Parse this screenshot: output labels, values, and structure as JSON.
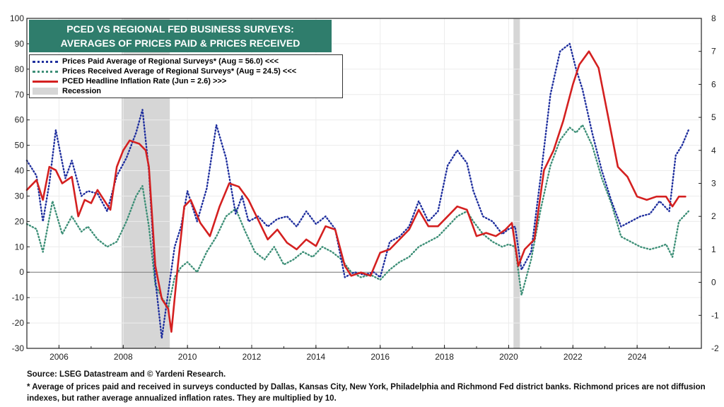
{
  "chart_data": {
    "type": "line",
    "title_lines": [
      "PCED VS REGIONAL FED BUSINESS SURVEYS:",
      "AVERAGES OF PRICES PAID & PRICES RECEIVED"
    ],
    "x_range": [
      2005.0,
      2026.0
    ],
    "x_ticks": [
      "2006",
      "2008",
      "2010",
      "2012",
      "2014",
      "2016",
      "2018",
      "2020",
      "2022",
      "2024"
    ],
    "left_axis": {
      "range": [
        -30,
        100
      ],
      "ticks": [
        "100",
        "90",
        "80",
        "70",
        "60",
        "50",
        "40",
        "30",
        "20",
        "10",
        "0",
        "-10",
        "-20",
        "-30"
      ]
    },
    "right_axis": {
      "range": [
        -2,
        8
      ],
      "ticks": [
        "8",
        "7",
        "6",
        "5",
        "4",
        "3",
        "2",
        "1",
        "0",
        "-1",
        "-2"
      ]
    },
    "recessions": [
      [
        2007.95,
        2009.45
      ],
      [
        2020.15,
        2020.35
      ]
    ],
    "legend_placement": "top-left",
    "legend": [
      {
        "label": "Prices Paid Average of Regional Surveys* (Aug = 56.0) <<<",
        "color": "#1f2f9e",
        "style": "dotted"
      },
      {
        "label": "Prices Received Average of Regional Surveys* (Aug = 24.5) <<<",
        "color": "#3d8f77",
        "style": "dotted"
      },
      {
        "label": "PCED Headline Inflation Rate (Jun = 2.6) >>>",
        "color": "#d42020",
        "style": "solid"
      },
      {
        "label": "Recession",
        "color": "#d6d6d6",
        "style": "box"
      }
    ],
    "series": [
      {
        "name": "Prices Paid Average of Regional Surveys* (Aug = 56.0) <<<",
        "axis": "left",
        "color": "#1f2f9e",
        "x": [
          2005.0,
          2005.3,
          2005.5,
          2005.7,
          2005.9,
          2006.2,
          2006.4,
          2006.7,
          2006.9,
          2007.2,
          2007.5,
          2007.8,
          2008.1,
          2008.4,
          2008.6,
          2008.8,
          2009.0,
          2009.2,
          2009.4,
          2009.6,
          2009.8,
          2010.0,
          2010.3,
          2010.6,
          2010.9,
          2011.2,
          2011.5,
          2011.7,
          2011.9,
          2012.2,
          2012.5,
          2012.8,
          2013.1,
          2013.4,
          2013.7,
          2014.0,
          2014.3,
          2014.6,
          2014.9,
          2015.2,
          2015.5,
          2015.8,
          2016.0,
          2016.3,
          2016.6,
          2016.9,
          2017.2,
          2017.5,
          2017.8,
          2018.1,
          2018.4,
          2018.7,
          2018.9,
          2019.2,
          2019.5,
          2019.8,
          2020.0,
          2020.2,
          2020.4,
          2020.7,
          2021.0,
          2021.3,
          2021.6,
          2021.9,
          2022.1,
          2022.3,
          2022.6,
          2022.9,
          2023.2,
          2023.5,
          2023.8,
          2024.1,
          2024.4,
          2024.7,
          2025.0,
          2025.2,
          2025.4,
          2025.6
        ],
        "values": [
          44,
          38,
          20,
          35,
          56,
          37,
          44,
          30,
          32,
          31,
          24,
          38,
          45,
          55,
          64,
          40,
          -3,
          -26,
          -8,
          10,
          18,
          32,
          20,
          33,
          58,
          45,
          23,
          30,
          20,
          22,
          18,
          21,
          22,
          18,
          24,
          19,
          22,
          17,
          -2,
          0,
          -1,
          0,
          -2,
          12,
          14,
          18,
          28,
          20,
          24,
          42,
          48,
          43,
          32,
          22,
          20,
          15,
          17,
          18,
          1,
          8,
          38,
          70,
          87,
          90,
          80,
          72,
          55,
          40,
          28,
          18,
          20,
          22,
          23,
          28,
          24,
          46,
          50,
          56
        ]
      },
      {
        "name": "Prices Received Average of Regional Surveys* (Aug = 24.5) <<<",
        "axis": "left",
        "color": "#3d8f77",
        "x": [
          2005.0,
          2005.3,
          2005.5,
          2005.8,
          2006.1,
          2006.4,
          2006.7,
          2006.9,
          2007.2,
          2007.5,
          2007.8,
          2008.1,
          2008.4,
          2008.6,
          2008.8,
          2009.0,
          2009.2,
          2009.4,
          2009.6,
          2009.8,
          2010.0,
          2010.3,
          2010.6,
          2010.9,
          2011.2,
          2011.5,
          2011.8,
          2012.1,
          2012.4,
          2012.7,
          2013.0,
          2013.3,
          2013.6,
          2013.9,
          2014.2,
          2014.5,
          2014.8,
          2015.1,
          2015.4,
          2015.7,
          2016.0,
          2016.3,
          2016.6,
          2016.9,
          2017.2,
          2017.5,
          2017.8,
          2018.1,
          2018.4,
          2018.7,
          2018.9,
          2019.2,
          2019.5,
          2019.8,
          2020.0,
          2020.2,
          2020.4,
          2020.7,
          2021.0,
          2021.3,
          2021.6,
          2021.9,
          2022.1,
          2022.3,
          2022.6,
          2022.9,
          2023.2,
          2023.5,
          2023.8,
          2024.1,
          2024.4,
          2024.7,
          2024.9,
          2025.1,
          2025.3,
          2025.6
        ],
        "values": [
          19,
          17,
          8,
          28,
          15,
          22,
          16,
          18,
          13,
          10,
          12,
          20,
          30,
          34,
          18,
          -5,
          -10,
          -14,
          -2,
          2,
          4,
          0,
          8,
          14,
          22,
          25,
          16,
          8,
          5,
          10,
          3,
          5,
          8,
          6,
          10,
          8,
          5,
          0,
          -2,
          -1,
          -3,
          1,
          4,
          6,
          10,
          12,
          14,
          18,
          22,
          24,
          20,
          15,
          12,
          10,
          11,
          10,
          -9,
          5,
          25,
          42,
          52,
          57,
          55,
          58,
          50,
          37,
          27,
          14,
          12,
          10,
          9,
          10,
          11,
          6,
          20,
          24
        ]
      },
      {
        "name": "PCED Headline Inflation Rate (Jun = 2.6) >>>",
        "axis": "right",
        "color": "#d42020",
        "x": [
          2005.0,
          2005.3,
          2005.5,
          2005.7,
          2005.9,
          2006.1,
          2006.4,
          2006.6,
          2006.8,
          2007.0,
          2007.2,
          2007.4,
          2007.6,
          2007.8,
          2008.0,
          2008.2,
          2008.5,
          2008.7,
          2008.8,
          2009.0,
          2009.2,
          2009.4,
          2009.5,
          2009.7,
          2009.9,
          2010.1,
          2010.4,
          2010.7,
          2011.0,
          2011.3,
          2011.6,
          2011.9,
          2012.2,
          2012.5,
          2012.8,
          2013.1,
          2013.4,
          2013.7,
          2014.0,
          2014.3,
          2014.6,
          2014.9,
          2015.1,
          2015.4,
          2015.7,
          2016.0,
          2016.3,
          2016.6,
          2016.9,
          2017.2,
          2017.5,
          2017.8,
          2018.1,
          2018.4,
          2018.7,
          2019.0,
          2019.3,
          2019.6,
          2019.9,
          2020.1,
          2020.3,
          2020.5,
          2020.8,
          2021.1,
          2021.4,
          2021.7,
          2022.0,
          2022.2,
          2022.5,
          2022.8,
          2023.1,
          2023.4,
          2023.7,
          2024.0,
          2024.3,
          2024.6,
          2024.9,
          2025.1,
          2025.3,
          2025.5
        ],
        "values": [
          2.8,
          3.1,
          2.5,
          3.5,
          3.4,
          3.0,
          3.2,
          2.0,
          2.5,
          2.4,
          2.8,
          2.5,
          2.2,
          3.5,
          4.0,
          4.3,
          4.2,
          4.0,
          3.5,
          0.5,
          -0.5,
          -0.8,
          -1.5,
          0.5,
          2.3,
          2.5,
          1.8,
          1.4,
          2.3,
          3.0,
          2.9,
          2.5,
          1.9,
          1.3,
          1.6,
          1.2,
          1.0,
          1.3,
          1.1,
          1.7,
          1.6,
          0.5,
          0.2,
          0.3,
          0.2,
          0.9,
          1.0,
          1.3,
          1.6,
          2.2,
          1.7,
          1.7,
          2.0,
          2.3,
          2.2,
          1.4,
          1.5,
          1.4,
          1.6,
          1.8,
          0.5,
          1.0,
          1.3,
          3.4,
          4.0,
          4.9,
          6.0,
          6.6,
          7.0,
          6.5,
          5.0,
          3.5,
          3.2,
          2.6,
          2.5,
          2.6,
          2.6,
          2.3,
          2.6,
          2.6
        ]
      }
    ]
  },
  "footer": {
    "source": "Source: LSEG Datastream and © Yardeni Research.",
    "note": "* Average of prices paid and received in surveys conducted by Dallas, Kansas City, New York, Philadelphia and Richmond Fed district banks. Richmond prices are not diffusion indexes, but rather average annualized inflation rates. They are multiplied by 10."
  }
}
